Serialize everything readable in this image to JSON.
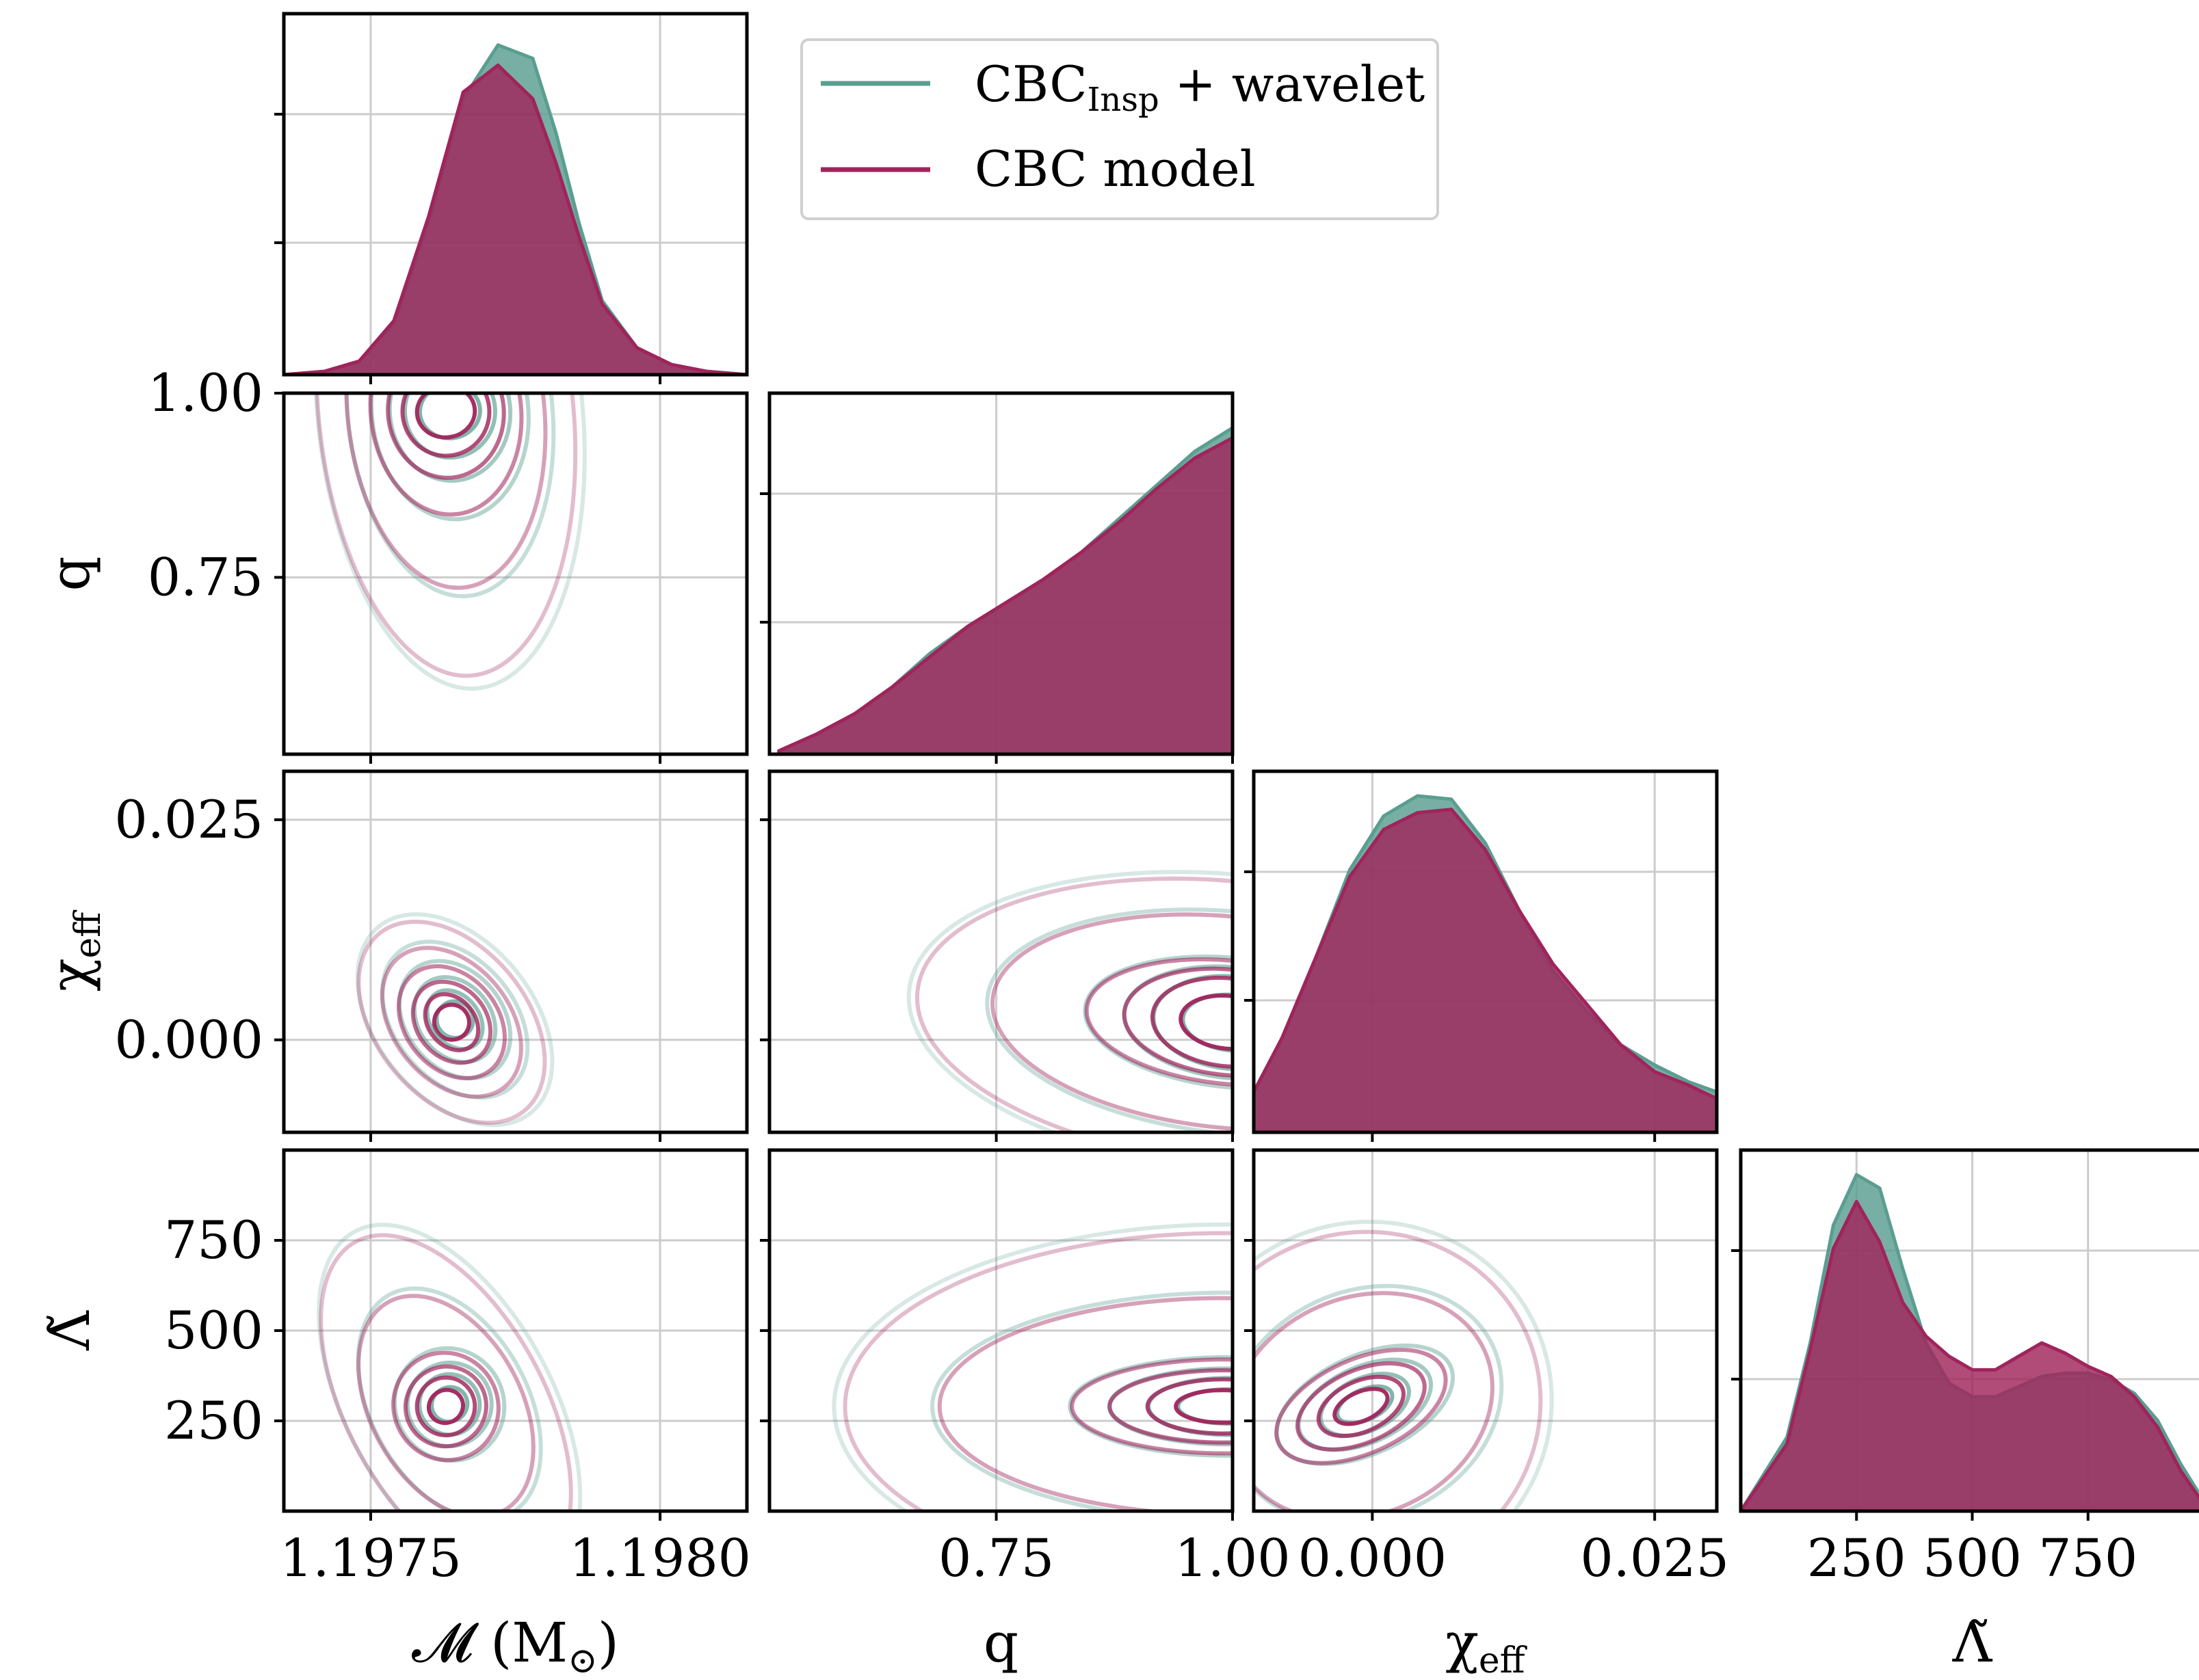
{
  "chart_data": {
    "type": "corner",
    "parameters": [
      {
        "key": "Mc",
        "label": "𝓜 (M",
        "label_sub": "⊙",
        "label_tail": ")",
        "range": [
          1.19735,
          1.19815
        ],
        "ticks": [
          1.1975,
          1.198
        ],
        "tick_labels": [
          "1.1975",
          "1.1980"
        ]
      },
      {
        "key": "q",
        "label": "q",
        "range": [
          0.51,
          1.0
        ],
        "ticks": [
          0.75,
          1.0
        ],
        "tick_labels": [
          "0.75",
          "1.00"
        ]
      },
      {
        "key": "chi_eff",
        "label": "χ",
        "label_sub": "eff",
        "range": [
          -0.0105,
          0.0305
        ],
        "ticks": [
          0.0,
          0.025
        ],
        "tick_labels": [
          "0.000",
          "0.025"
        ]
      },
      {
        "key": "lambda",
        "label": "Λ̃",
        "range": [
          0,
          1000
        ],
        "ticks": [
          250,
          500,
          750
        ],
        "tick_labels": [
          "250",
          "500",
          "750"
        ]
      }
    ],
    "legend": {
      "placement": "top-right",
      "entries": [
        {
          "name": "CBC",
          "name_sub": "Insp",
          "name_tail": " + wavelet",
          "color": "#5a9e90"
        },
        {
          "name": "CBC model",
          "name_sub": "",
          "name_tail": "",
          "color": "#a0245c"
        }
      ]
    },
    "grid": true,
    "colors": {
      "cbc_insp_wavelet": "#5a9e90",
      "cbc_model": "#a0245c",
      "grid": "#cccccc"
    },
    "marginals": {
      "Mc": {
        "x": [
          1.19735,
          1.19742,
          1.19748,
          1.19754,
          1.1976,
          1.19766,
          1.19772,
          1.19778,
          1.19782,
          1.19786,
          1.1979,
          1.19796,
          1.19802,
          1.19808,
          1.19815
        ],
        "CBC_Insp_wavelet": [
          0.0,
          0.01,
          0.04,
          0.15,
          0.45,
          0.82,
          0.98,
          0.94,
          0.72,
          0.45,
          0.22,
          0.08,
          0.03,
          0.01,
          0.0
        ],
        "CBC_model": [
          0.0,
          0.01,
          0.04,
          0.16,
          0.47,
          0.84,
          0.92,
          0.82,
          0.63,
          0.41,
          0.21,
          0.08,
          0.03,
          0.01,
          0.0
        ]
      },
      "q": {
        "x": [
          0.52,
          0.56,
          0.6,
          0.64,
          0.68,
          0.72,
          0.76,
          0.8,
          0.84,
          0.88,
          0.92,
          0.96,
          1.0
        ],
        "CBC_Insp_wavelet": [
          0.01,
          0.06,
          0.12,
          0.2,
          0.3,
          0.38,
          0.45,
          0.52,
          0.6,
          0.7,
          0.8,
          0.9,
          0.97
        ],
        "CBC_model": [
          0.01,
          0.06,
          0.12,
          0.2,
          0.29,
          0.38,
          0.45,
          0.52,
          0.6,
          0.69,
          0.79,
          0.88,
          0.94
        ]
      },
      "chi_eff": {
        "x": [
          -0.0105,
          -0.008,
          -0.005,
          -0.002,
          0.001,
          0.004,
          0.007,
          0.01,
          0.013,
          0.016,
          0.019,
          0.022,
          0.025,
          0.028,
          0.0305
        ],
        "CBC_Insp_wavelet": [
          0.12,
          0.28,
          0.52,
          0.78,
          0.94,
          1.0,
          0.99,
          0.86,
          0.66,
          0.48,
          0.36,
          0.26,
          0.2,
          0.15,
          0.12
        ],
        "CBC_model": [
          0.12,
          0.28,
          0.52,
          0.76,
          0.9,
          0.95,
          0.96,
          0.84,
          0.66,
          0.5,
          0.38,
          0.26,
          0.18,
          0.14,
          0.1
        ]
      },
      "lambda": {
        "x": [
          0,
          100,
          150,
          200,
          250,
          300,
          350,
          400,
          450,
          500,
          550,
          600,
          650,
          700,
          750,
          800,
          850,
          900,
          950,
          1000
        ],
        "CBC_Insp_wavelet": [
          0.0,
          0.22,
          0.5,
          0.85,
          1.0,
          0.96,
          0.72,
          0.5,
          0.38,
          0.34,
          0.34,
          0.37,
          0.4,
          0.41,
          0.41,
          0.39,
          0.35,
          0.27,
          0.14,
          0.03
        ],
        "CBC_model": [
          0.0,
          0.2,
          0.48,
          0.78,
          0.92,
          0.8,
          0.62,
          0.52,
          0.46,
          0.42,
          0.42,
          0.46,
          0.5,
          0.47,
          0.43,
          0.4,
          0.34,
          0.25,
          0.12,
          0.02
        ]
      }
    },
    "contours": [
      {
        "pair": [
          "Mc",
          "q"
        ],
        "center": [
          1.19763,
          0.975
        ],
        "levels": [
          [
            5e-05,
            0.035
          ],
          [
            7.5e-05,
            0.06
          ],
          [
            0.0001,
            0.09
          ],
          [
            0.00013,
            0.14
          ],
          [
            0.00017,
            0.24
          ],
          [
            0.00022,
            0.36
          ]
        ],
        "tilt": 0.1
      },
      {
        "pair": [
          "Mc",
          "chi_eff"
        ],
        "center": [
          1.19764,
          0.002
        ],
        "levels": [
          [
            3e-05,
            0.002
          ],
          [
            4e-05,
            0.0035
          ],
          [
            6e-05,
            0.005
          ],
          [
            8e-05,
            0.007
          ],
          [
            0.0001,
            0.0095
          ],
          [
            0.00013,
            0.013
          ]
        ],
        "tilt": 0.82
      },
      {
        "pair": [
          "q",
          "chi_eff"
        ],
        "center": [
          0.995,
          0.002
        ],
        "levels": [
          [
            0.05,
            0.003
          ],
          [
            0.08,
            0.005
          ],
          [
            0.11,
            0.006
          ],
          [
            0.15,
            0.007
          ],
          [
            0.25,
            0.012
          ],
          [
            0.33,
            0.016
          ]
        ],
        "tilt": -0.1
      },
      {
        "pair": [
          "Mc",
          "lambda"
        ],
        "center": [
          1.19763,
          290
        ],
        "levels": [
          [
            3e-05,
            45
          ],
          [
            5e-05,
            80
          ],
          [
            7e-05,
            110
          ],
          [
            9e-05,
            150
          ],
          [
            0.00013,
            330
          ],
          [
            0.00017,
            520
          ]
        ],
        "tilt": 0.55
      },
      {
        "pair": [
          "q",
          "lambda"
        ],
        "center": [
          0.99,
          290
        ],
        "levels": [
          [
            0.05,
            45
          ],
          [
            0.08,
            75
          ],
          [
            0.12,
            100
          ],
          [
            0.16,
            130
          ],
          [
            0.3,
            300
          ],
          [
            0.4,
            480
          ]
        ],
        "tilt": 0.0
      },
      {
        "pair": [
          "chi_eff",
          "lambda"
        ],
        "center": [
          -0.001,
          290
        ],
        "levels": [
          [
            0.0025,
            40
          ],
          [
            0.004,
            70
          ],
          [
            0.006,
            100
          ],
          [
            0.008,
            130
          ],
          [
            0.012,
            300
          ],
          [
            0.016,
            480
          ]
        ],
        "tilt": 0.45
      }
    ]
  }
}
